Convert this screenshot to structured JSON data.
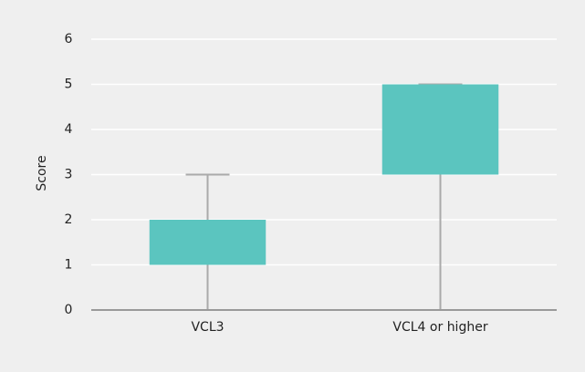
{
  "chart_data": {
    "type": "box",
    "y_label": "Score",
    "categories": [
      "VCL3",
      "VCL4 or higher"
    ],
    "values": [
      {
        "min": 0,
        "q1": 1,
        "q3": 2,
        "max": 3
      },
      {
        "min": 0,
        "q1": 3,
        "q3": 5,
        "max": 5
      }
    ],
    "color": "#5bc5bf",
    "whisker_color": "#aaaaaa",
    "ylim": [
      0,
      6
    ],
    "yticks": [
      0,
      1,
      2,
      3,
      4,
      5,
      6
    ],
    "grid": true
  }
}
